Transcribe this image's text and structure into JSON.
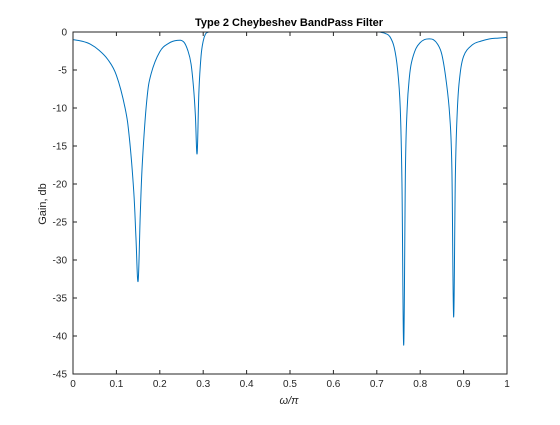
{
  "chart_data": {
    "type": "line",
    "title": "Type 2 Cheybeshev BandPass Filter",
    "xlabel": "ω/π",
    "ylabel": "Gain, db",
    "xlim": [
      0,
      1
    ],
    "ylim": [
      -45,
      0
    ],
    "xticks": [
      "0",
      "0.1",
      "0.2",
      "0.3",
      "0.4",
      "0.5",
      "0.6",
      "0.7",
      "0.8",
      "0.9",
      "1"
    ],
    "yticks": [
      "0",
      "-5",
      "-10",
      "-15",
      "-20",
      "-25",
      "-30",
      "-35",
      "-40",
      "-45"
    ],
    "grid": true,
    "line_color": "#0072bd",
    "series": [
      {
        "x": [
          0,
          0.02,
          0.04,
          0.06,
          0.08,
          0.1,
          0.12,
          0.13,
          0.14,
          0.145,
          0.15,
          0.155,
          0.16,
          0.17,
          0.18,
          0.2,
          0.22,
          0.24,
          0.255,
          0.265,
          0.272,
          0.278,
          0.282,
          0.286,
          0.29,
          0.295,
          0.3,
          0.305,
          0.31,
          0.315,
          0.32,
          0.35,
          0.4,
          0.5,
          0.6,
          0.7,
          0.71,
          0.72,
          0.73,
          0.74,
          0.748,
          0.754,
          0.758,
          0.762,
          0.766,
          0.77,
          0.775,
          0.78,
          0.79,
          0.8,
          0.81,
          0.82,
          0.83,
          0.84,
          0.85,
          0.86,
          0.868,
          0.873,
          0.877,
          0.881,
          0.885,
          0.89,
          0.9,
          0.92,
          0.94,
          0.96,
          0.98,
          1
        ],
        "y": [
          -1.0,
          -1.2,
          -1.6,
          -2.4,
          -3.6,
          -5.7,
          -10.0,
          -14.0,
          -21.0,
          -27.0,
          -32.8,
          -24.0,
          -17.0,
          -9.0,
          -5.5,
          -2.6,
          -1.5,
          -1.1,
          -1.3,
          -2.5,
          -4.2,
          -7.5,
          -11.0,
          -16.0,
          -8.0,
          -3.2,
          -1.2,
          -0.3,
          -0.05,
          0.0,
          0.0,
          0.0,
          0.0,
          0.0,
          0.0,
          0.0,
          -0.05,
          -0.2,
          -0.6,
          -2.0,
          -5.0,
          -10.0,
          -20.0,
          -41.2,
          -18.0,
          -10.0,
          -6.0,
          -4.0,
          -2.2,
          -1.4,
          -1.0,
          -0.9,
          -1.0,
          -1.6,
          -3.0,
          -6.5,
          -11.0,
          -18.0,
          -37.5,
          -19.0,
          -11.0,
          -6.5,
          -3.2,
          -1.7,
          -1.2,
          -0.9,
          -0.8,
          -0.7
        ]
      }
    ]
  }
}
